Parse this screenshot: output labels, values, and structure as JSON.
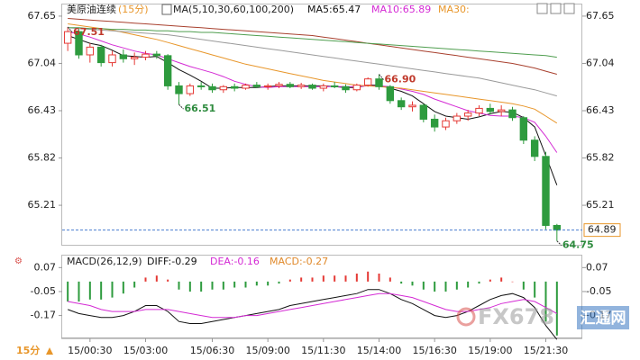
{
  "chart_data": [
    {
      "type": "candlestick",
      "title": "美原油连续",
      "subtitle": "(15分)",
      "indicator": "MA(5,10,30,60,100,200)",
      "categories": [
        null,
        null,
        "15/00:30",
        null,
        null,
        null,
        null,
        "15/03:00",
        null,
        null,
        null,
        null,
        null,
        "15/06:30",
        null,
        null,
        null,
        null,
        "15/09:00",
        null,
        null,
        null,
        null,
        "15/11:30",
        null,
        null,
        null,
        null,
        "15/14:00",
        null,
        null,
        null,
        null,
        "15/16:30",
        null,
        null,
        null,
        null,
        "15/19:00",
        null,
        null,
        null,
        null,
        "15/21:30",
        null
      ],
      "ohlc": [
        [
          67.3,
          67.51,
          67.2,
          67.45
        ],
        [
          67.45,
          67.48,
          67.1,
          67.15
        ],
        [
          67.15,
          67.3,
          67.05,
          67.25
        ],
        [
          67.25,
          67.28,
          67.0,
          67.05
        ],
        [
          67.05,
          67.2,
          67.0,
          67.15
        ],
        [
          67.15,
          67.22,
          67.05,
          67.1
        ],
        [
          67.1,
          67.18,
          67.02,
          67.12
        ],
        [
          67.12,
          67.2,
          67.08,
          67.16
        ],
        [
          67.16,
          67.2,
          67.1,
          67.14
        ],
        [
          67.14,
          67.16,
          66.7,
          66.75
        ],
        [
          66.75,
          66.8,
          66.51,
          66.65
        ],
        [
          66.65,
          66.78,
          66.62,
          66.75
        ],
        [
          66.75,
          66.8,
          66.7,
          66.74
        ],
        [
          66.74,
          66.78,
          66.66,
          66.7
        ],
        [
          66.7,
          66.76,
          66.66,
          66.74
        ],
        [
          66.74,
          66.78,
          66.68,
          66.72
        ],
        [
          66.72,
          66.78,
          66.7,
          66.76
        ],
        [
          66.76,
          66.8,
          66.72,
          66.74
        ],
        [
          66.74,
          66.78,
          66.7,
          66.75
        ],
        [
          66.75,
          66.8,
          66.72,
          66.77
        ],
        [
          66.77,
          66.8,
          66.72,
          66.74
        ],
        [
          66.74,
          66.79,
          66.71,
          66.76
        ],
        [
          66.76,
          66.78,
          66.7,
          66.72
        ],
        [
          66.72,
          66.78,
          66.68,
          66.75
        ],
        [
          66.75,
          66.8,
          66.72,
          66.74
        ],
        [
          66.74,
          66.77,
          66.66,
          66.7
        ],
        [
          66.7,
          66.78,
          66.68,
          66.76
        ],
        [
          66.76,
          66.86,
          66.74,
          66.84
        ],
        [
          66.84,
          66.9,
          66.7,
          66.74
        ],
        [
          66.74,
          66.76,
          66.52,
          66.56
        ],
        [
          66.56,
          66.6,
          66.44,
          66.48
        ],
        [
          66.48,
          66.55,
          66.42,
          66.5
        ],
        [
          66.5,
          66.52,
          66.28,
          66.32
        ],
        [
          66.32,
          66.38,
          66.16,
          66.22
        ],
        [
          66.22,
          66.34,
          66.18,
          66.3
        ],
        [
          66.3,
          66.4,
          66.26,
          66.36
        ],
        [
          66.36,
          66.44,
          66.3,
          66.4
        ],
        [
          66.4,
          66.5,
          66.36,
          66.46
        ],
        [
          66.46,
          66.52,
          66.38,
          66.42
        ],
        [
          66.42,
          66.5,
          66.36,
          66.44
        ],
        [
          66.44,
          66.48,
          66.3,
          66.34
        ],
        [
          66.34,
          66.36,
          66.0,
          66.05
        ],
        [
          66.05,
          66.1,
          65.78,
          65.84
        ],
        [
          65.84,
          65.9,
          64.9,
          64.95
        ],
        [
          64.95,
          64.97,
          64.75,
          64.89
        ]
      ],
      "up_color": "#e53935",
      "down_color": "#2e9b3e",
      "series": [
        {
          "name": "MA5:65.47",
          "color": "#111111",
          "values": [
            67.4,
            67.35,
            67.3,
            67.27,
            67.21,
            67.14,
            67.13,
            67.12,
            67.13,
            67.05,
            66.96,
            66.89,
            66.81,
            66.72,
            66.72,
            66.73,
            66.73,
            66.73,
            66.74,
            66.75,
            66.75,
            66.75,
            66.75,
            66.75,
            66.74,
            66.73,
            66.73,
            66.76,
            66.76,
            66.72,
            66.68,
            66.62,
            66.52,
            66.42,
            66.36,
            66.34,
            66.32,
            66.35,
            66.39,
            66.42,
            66.41,
            66.34,
            66.22,
            65.85,
            65.47
          ]
        },
        {
          "name": "MA10:65.89",
          "color": "#d42ad4",
          "values": [
            67.45,
            67.42,
            67.38,
            67.33,
            67.28,
            67.24,
            67.2,
            67.17,
            67.15,
            67.1,
            67.05,
            67.0,
            66.96,
            66.92,
            66.87,
            66.81,
            66.77,
            66.74,
            66.73,
            66.74,
            66.74,
            66.74,
            66.74,
            66.74,
            66.74,
            66.74,
            66.74,
            66.75,
            66.75,
            66.74,
            66.71,
            66.68,
            66.64,
            66.58,
            66.53,
            66.48,
            66.43,
            66.4,
            66.37,
            66.36,
            66.36,
            66.34,
            66.28,
            66.1,
            65.89
          ]
        },
        {
          "name": "MA30:",
          "color": "#e8962a",
          "values": [
            67.55,
            67.53,
            67.51,
            67.49,
            67.47,
            67.44,
            67.41,
            67.38,
            67.35,
            67.31,
            67.27,
            67.23,
            67.19,
            67.15,
            67.11,
            67.07,
            67.03,
            67.0,
            66.97,
            66.94,
            66.91,
            66.88,
            66.85,
            66.82,
            66.8,
            66.78,
            66.76,
            66.75,
            66.74,
            66.73,
            66.72,
            66.7,
            66.68,
            66.66,
            66.64,
            66.62,
            66.6,
            66.58,
            66.56,
            66.54,
            66.52,
            66.49,
            66.45,
            66.36,
            66.27
          ]
        },
        {
          "color": "#9a9a9a",
          "values": [
            67.5,
            67.49,
            67.48,
            67.47,
            67.46,
            67.45,
            67.44,
            67.43,
            67.42,
            67.41,
            67.39,
            67.37,
            67.35,
            67.33,
            67.31,
            67.29,
            67.27,
            67.25,
            67.23,
            67.21,
            67.19,
            67.17,
            67.15,
            67.13,
            67.11,
            67.09,
            67.07,
            67.05,
            67.03,
            67.01,
            66.99,
            66.97,
            66.95,
            66.93,
            66.91,
            66.89,
            66.87,
            66.85,
            66.82,
            66.79,
            66.76,
            66.73,
            66.7,
            66.66,
            66.62
          ]
        },
        {
          "color": "#a8402e",
          "values": [
            67.62,
            67.61,
            67.6,
            67.59,
            67.58,
            67.57,
            67.56,
            67.55,
            67.54,
            67.53,
            67.52,
            67.51,
            67.5,
            67.49,
            67.48,
            67.47,
            67.46,
            67.45,
            67.44,
            67.43,
            67.42,
            67.41,
            67.4,
            67.38,
            67.36,
            67.34,
            67.32,
            67.3,
            67.28,
            67.26,
            67.24,
            67.22,
            67.2,
            67.18,
            67.16,
            67.14,
            67.12,
            67.1,
            67.08,
            67.06,
            67.04,
            67.01,
            66.98,
            66.94,
            66.9
          ]
        },
        {
          "color": "#4f9e4f",
          "values": [
            67.5,
            67.5,
            67.49,
            67.49,
            67.48,
            67.48,
            67.47,
            67.47,
            67.46,
            67.46,
            67.45,
            67.45,
            67.44,
            67.44,
            67.43,
            67.42,
            67.41,
            67.4,
            67.39,
            67.38,
            67.37,
            67.36,
            67.35,
            67.34,
            67.33,
            67.32,
            67.31,
            67.3,
            67.29,
            67.28,
            67.27,
            67.26,
            67.25,
            67.24,
            67.23,
            67.22,
            67.21,
            67.2,
            67.19,
            67.18,
            67.17,
            67.16,
            67.15,
            67.14,
            67.12
          ]
        }
      ],
      "extreme_labels": [
        {
          "value": 67.51,
          "label": "67.51"
        },
        {
          "value": 66.51,
          "label": "66.51"
        },
        {
          "value": 66.9,
          "label": "66.90"
        },
        {
          "value": 64.75,
          "label": "64.75"
        }
      ],
      "last_price": {
        "value": 64.89,
        "label": "64.89"
      },
      "ylim": [
        64.7,
        67.8
      ],
      "yticks": [
        67.65,
        67.04,
        66.43,
        65.82,
        65.21
      ],
      "grid": false
    },
    {
      "type": "macd",
      "title": "MACD(26,12,9)",
      "series": [
        {
          "name": "DIFF:-0.29",
          "color": "#111111",
          "kind": "line",
          "values": [
            -0.14,
            -0.16,
            -0.17,
            -0.18,
            -0.18,
            -0.17,
            -0.15,
            -0.12,
            -0.12,
            -0.15,
            -0.2,
            -0.21,
            -0.21,
            -0.2,
            -0.19,
            -0.18,
            -0.17,
            -0.16,
            -0.15,
            -0.14,
            -0.12,
            -0.11,
            -0.1,
            -0.09,
            -0.08,
            -0.07,
            -0.06,
            -0.04,
            -0.04,
            -0.06,
            -0.09,
            -0.11,
            -0.14,
            -0.17,
            -0.18,
            -0.17,
            -0.15,
            -0.12,
            -0.09,
            -0.07,
            -0.06,
            -0.08,
            -0.13,
            -0.22,
            -0.29
          ]
        },
        {
          "name": "DEA:-0.16",
          "color": "#d42ad4",
          "kind": "line",
          "values": [
            -0.1,
            -0.11,
            -0.12,
            -0.14,
            -0.15,
            -0.15,
            -0.15,
            -0.14,
            -0.14,
            -0.14,
            -0.15,
            -0.16,
            -0.17,
            -0.18,
            -0.18,
            -0.18,
            -0.17,
            -0.17,
            -0.16,
            -0.15,
            -0.14,
            -0.13,
            -0.12,
            -0.11,
            -0.1,
            -0.09,
            -0.08,
            -0.07,
            -0.06,
            -0.06,
            -0.07,
            -0.08,
            -0.1,
            -0.12,
            -0.14,
            -0.15,
            -0.15,
            -0.14,
            -0.13,
            -0.11,
            -0.1,
            -0.09,
            -0.1,
            -0.13,
            -0.16
          ]
        },
        {
          "name": "MACD:-0.27",
          "color": "#e0892a",
          "kind": "bar",
          "up_color": "#e53935",
          "down_color": "#2e9b3e",
          "values": [
            -0.1,
            -0.1,
            -0.09,
            -0.09,
            -0.08,
            -0.06,
            -0.03,
            0.02,
            0.03,
            0.01,
            -0.04,
            -0.05,
            -0.05,
            -0.04,
            -0.04,
            -0.03,
            -0.03,
            -0.02,
            -0.02,
            -0.01,
            0.01,
            0.02,
            0.02,
            0.03,
            0.03,
            0.03,
            0.04,
            0.05,
            0.04,
            0.02,
            -0.01,
            -0.02,
            -0.04,
            -0.05,
            -0.05,
            -0.04,
            -0.03,
            -0.01,
            0.01,
            0.02,
            0.0,
            -0.04,
            -0.08,
            -0.2,
            -0.27
          ]
        }
      ],
      "ylim": [
        -0.28,
        0.13
      ],
      "yticks": [
        0.07,
        -0.05,
        -0.17
      ],
      "grid": false
    }
  ],
  "period_button": "15分",
  "watermark": {
    "brand": "FX678",
    "name": "汇通网"
  }
}
